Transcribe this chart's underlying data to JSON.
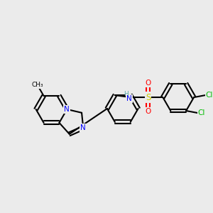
{
  "bg_color": "#ebebeb",
  "bond_color": "#000000",
  "bond_lw": 1.5,
  "atom_colors": {
    "N": "#0000ff",
    "S": "#cccc00",
    "O": "#ff0000",
    "Cl": "#00bb00",
    "H": "#5aacac"
  },
  "font_size": 7.5,
  "font_size_small": 6.5
}
